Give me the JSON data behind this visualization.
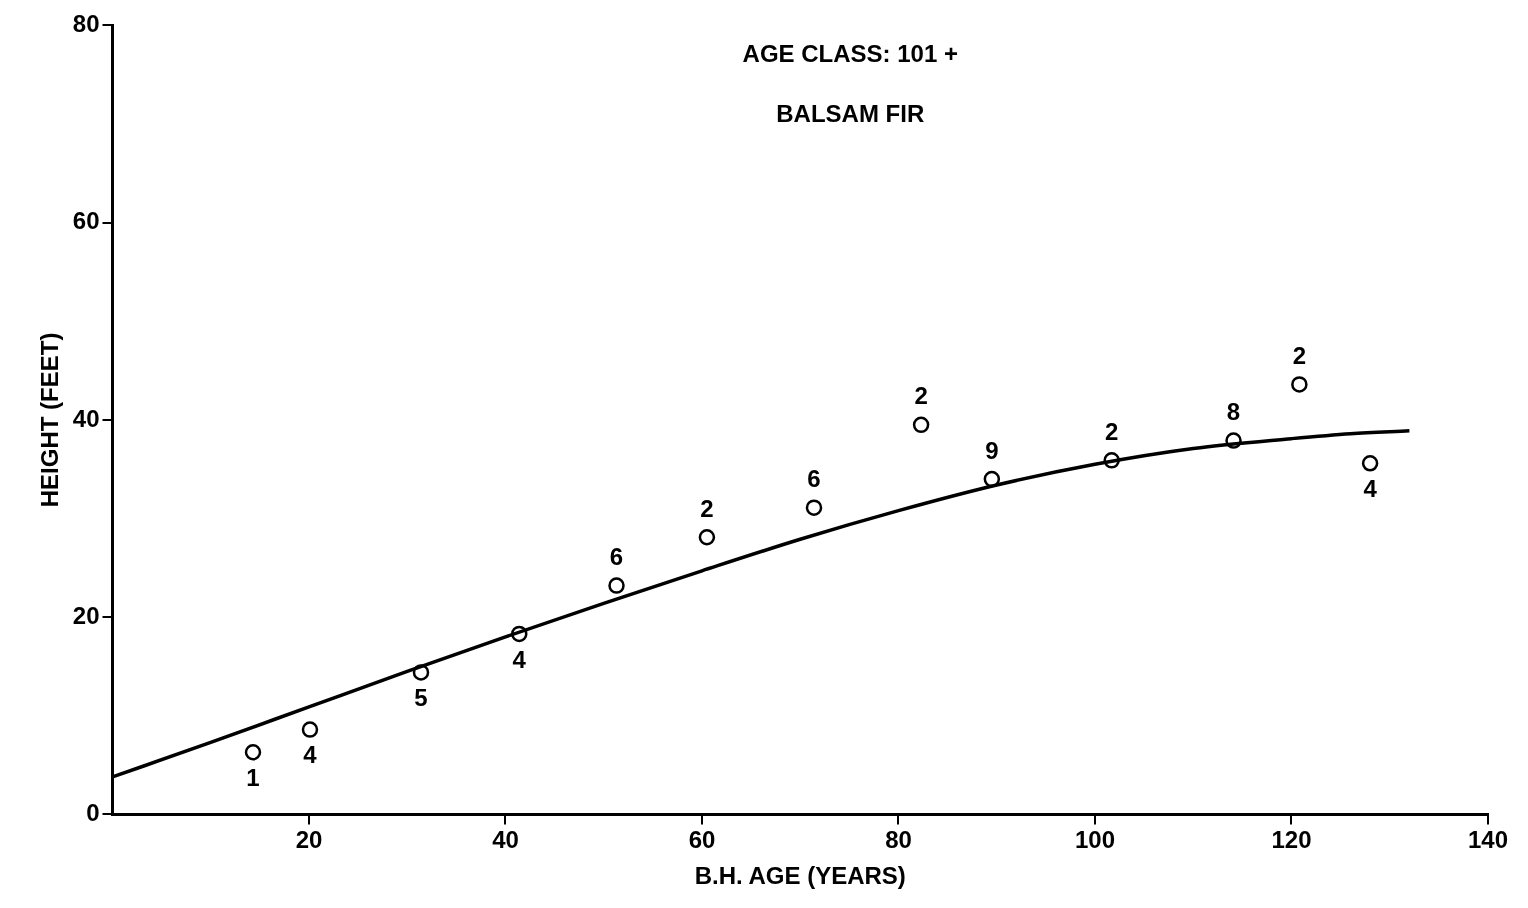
{
  "chart_data": {
    "type": "scatter",
    "title": "AGE CLASS: 101 +",
    "subtitle": "BALSAM FIR",
    "xlabel": "B.H. AGE (YEARS)",
    "ylabel": "HEIGHT (FEET)",
    "xlim": [
      0,
      140
    ],
    "xticks": [
      20,
      40,
      60,
      80,
      100,
      120,
      140
    ],
    "ylim": [
      0,
      80
    ],
    "yticks": [
      0,
      20,
      40,
      60,
      80
    ],
    "grid": false,
    "legend": false,
    "marker": "circle",
    "series": [
      {
        "type": "scatter",
        "color": "#000000",
        "x": [
          14.3,
          20.1,
          31.4,
          41.4,
          51.3,
          60.5,
          71.4,
          82.3,
          89.5,
          101.7,
          114.1,
          120.8,
          128.0
        ],
        "values": [
          6.3,
          8.6,
          14.4,
          18.3,
          23.2,
          28.1,
          31.1,
          39.5,
          34.0,
          35.9,
          37.9,
          43.6,
          35.6
        ]
      },
      {
        "type": "line",
        "color": "#000000",
        "marker": "none",
        "line_style": "solid",
        "x": [
          0,
          10,
          20,
          30,
          40,
          50,
          60,
          70,
          80,
          90,
          100,
          110,
          120,
          126,
          132
        ],
        "values": [
          3.8,
          7.3,
          10.9,
          14.5,
          18.0,
          21.4,
          24.7,
          27.9,
          30.8,
          33.4,
          35.5,
          37.1,
          38.1,
          38.6,
          38.9
        ]
      }
    ],
    "annotations": [
      {
        "text": "1",
        "x": 14.3,
        "y": 6.3
      },
      {
        "text": "4",
        "x": 20.1,
        "y": 8.6
      },
      {
        "text": "5",
        "x": 31.4,
        "y": 14.4
      },
      {
        "text": "4",
        "x": 41.4,
        "y": 18.3
      },
      {
        "text": "6",
        "x": 51.3,
        "y": 23.2
      },
      {
        "text": "2",
        "x": 60.5,
        "y": 28.1
      },
      {
        "text": "6",
        "x": 71.4,
        "y": 31.1
      },
      {
        "text": "2",
        "x": 82.3,
        "y": 39.5
      },
      {
        "text": "9",
        "x": 89.5,
        "y": 34.0
      },
      {
        "text": "2",
        "x": 101.7,
        "y": 35.9
      },
      {
        "text": "8",
        "x": 114.1,
        "y": 37.9
      },
      {
        "text": "2",
        "x": 120.8,
        "y": 43.6
      },
      {
        "text": "4",
        "x": 128.0,
        "y": 35.6
      }
    ]
  }
}
